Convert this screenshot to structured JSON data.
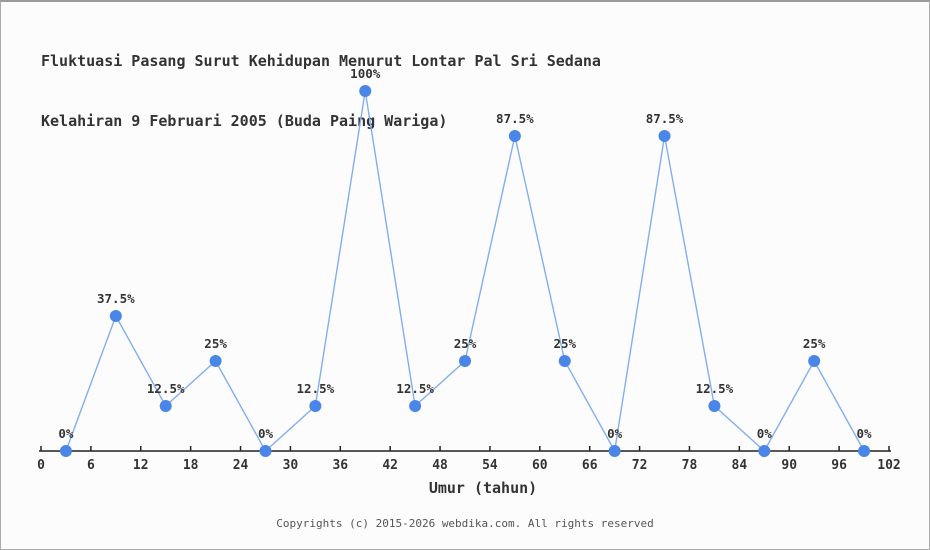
{
  "footer": {
    "copyright": "Copyrights (c) 2015-2026 webdika.com. All rights reserved"
  },
  "chart_data": {
    "type": "line",
    "title": "Fluktuasi Pasang Surut Kehidupan Menurut Lontar Pal Sri Sedana Kelahiran 9 Februari 2005 (Buda Paing Wariga)",
    "title_lines": [
      "Fluktuasi Pasang Surut Kehidupan Menurut Lontar Pal Sri Sedana",
      "Kelahiran 9 Februari 2005 (Buda Paing Wariga)"
    ],
    "xlabel": "Umur (tahun)",
    "ylabel": "",
    "x": [
      3,
      9,
      15,
      21,
      27,
      33,
      39,
      45,
      51,
      57,
      63,
      69,
      75,
      81,
      87,
      93,
      99
    ],
    "values": [
      0,
      37.5,
      12.5,
      25,
      0,
      12.5,
      100,
      12.5,
      25,
      87.5,
      25,
      0,
      87.5,
      12.5,
      0,
      25,
      0
    ],
    "point_labels": [
      "0%",
      "37.5%",
      "12.5%",
      "25%",
      "0%",
      "12.5%",
      "100%",
      "12.5%",
      "25%",
      "87.5%",
      "25%",
      "0%",
      "87.5%",
      "12.5%",
      "0%",
      "25%",
      "0%"
    ],
    "x_ticks": [
      0,
      6,
      12,
      18,
      24,
      30,
      36,
      42,
      48,
      54,
      60,
      66,
      72,
      78,
      84,
      90,
      96,
      102
    ],
    "xlim": [
      0,
      102
    ],
    "ylim": [
      0,
      100
    ],
    "grid": false,
    "legend": "none",
    "colors": {
      "marker": "#4a86e8",
      "line": "#82aef2",
      "axis": "#222222",
      "text": "#333333",
      "footer": "#555555",
      "background": "#fcfcfc"
    }
  }
}
